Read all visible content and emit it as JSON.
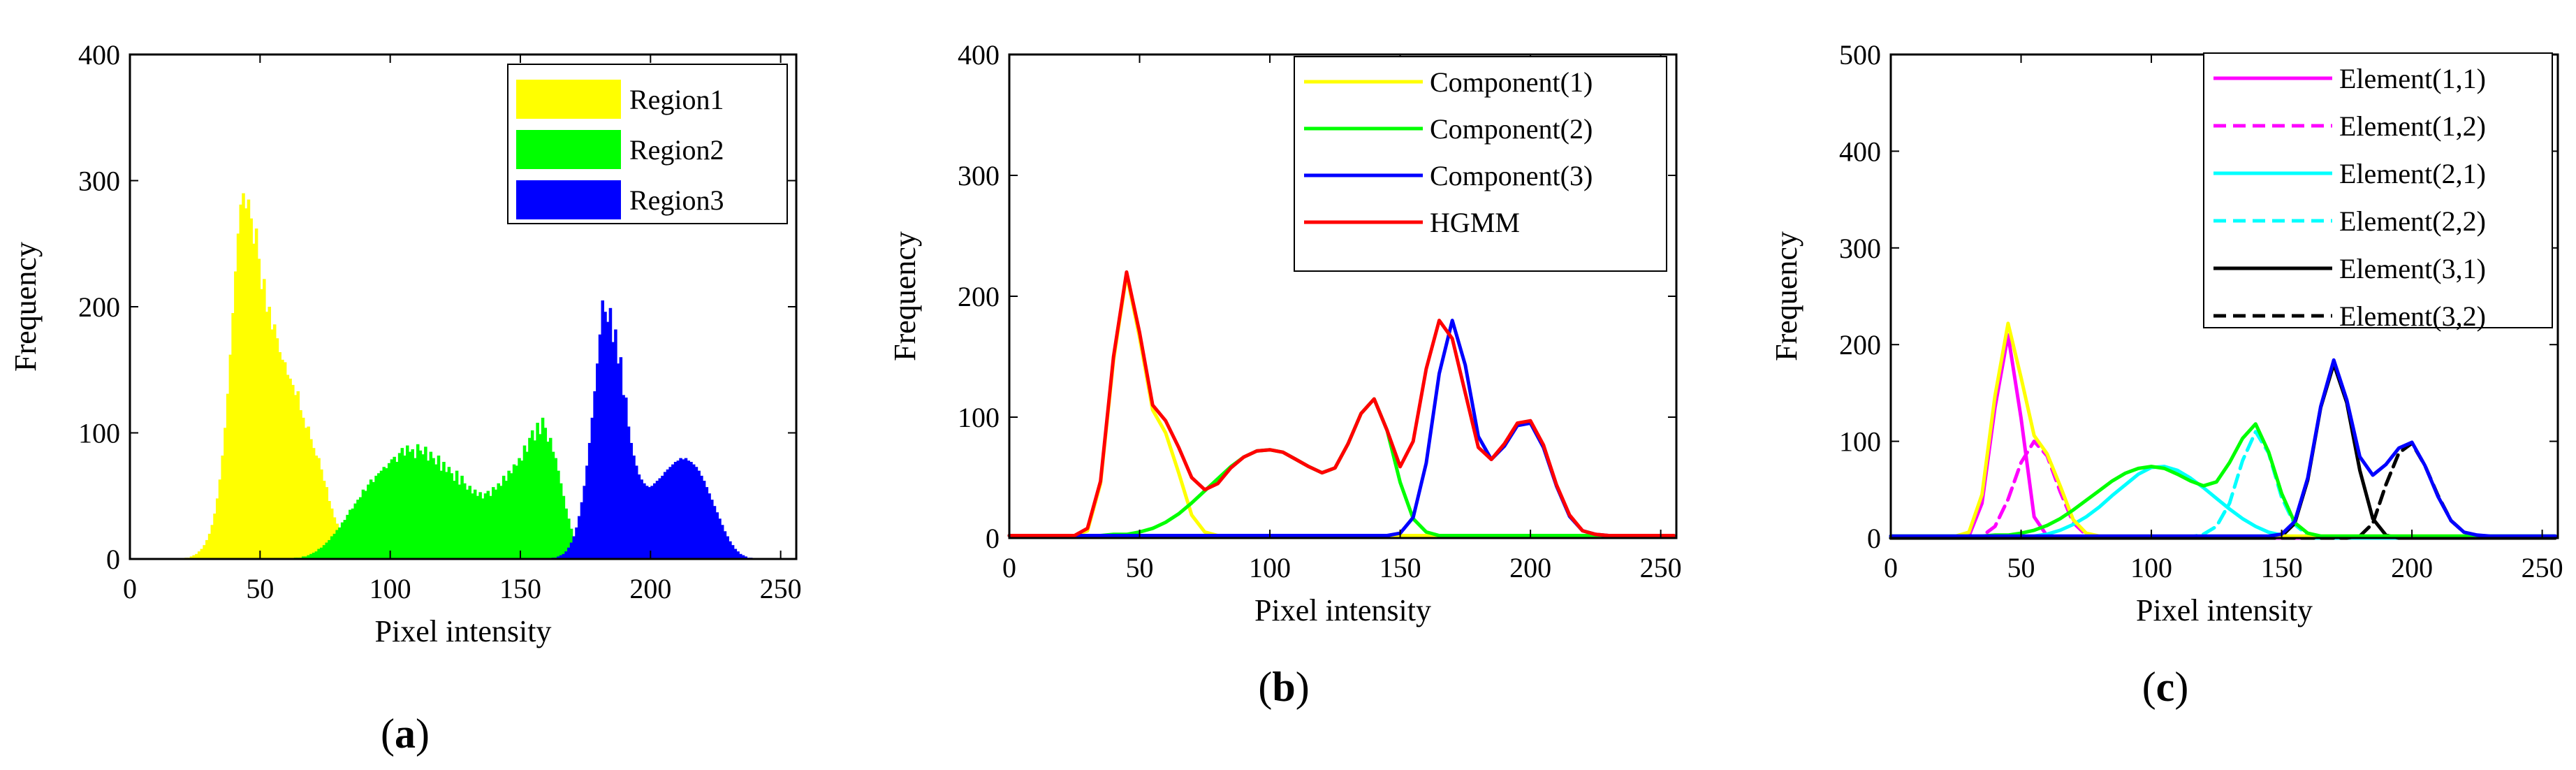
{
  "figure_panels": [
    {
      "label": "a",
      "caption": "(a)"
    },
    {
      "label": "b",
      "caption": "(b)"
    },
    {
      "label": "c",
      "caption": "(c)"
    }
  ],
  "chart_data": [
    {
      "id": "a",
      "type": "bar",
      "subtype": "histogram",
      "caption": "(a)",
      "xlabel": "Pixel intensity",
      "ylabel": "Frequency",
      "xlim": [
        0,
        256
      ],
      "ylim": [
        0,
        400
      ],
      "xticks": [
        0,
        50,
        100,
        150,
        200,
        250
      ],
      "yticks": [
        0,
        100,
        200,
        300,
        400
      ],
      "legend_position": "top-right",
      "bin_width": 1,
      "series": [
        {
          "name": "Region1",
          "color": "#ffff00",
          "range": [
            20,
            95
          ],
          "values": [
            0,
            1,
            1,
            2,
            3,
            4,
            6,
            8,
            11,
            15,
            20,
            27,
            36,
            48,
            63,
            82,
            104,
            131,
            162,
            195,
            228,
            258,
            281,
            290,
            278,
            285,
            270,
            250,
            262,
            238,
            214,
            222,
            196,
            200,
            182,
            186,
            175,
            164,
            158,
            156,
            146,
            143,
            138,
            130,
            133,
            118,
            112,
            104,
            105,
            95,
            88,
            82,
            80,
            71,
            62,
            57,
            46,
            40,
            33,
            28,
            22,
            16,
            12,
            8,
            6,
            4,
            3,
            2,
            1,
            1,
            1,
            0,
            0,
            0,
            0,
            0
          ]
        },
        {
          "name": "Region2",
          "color": "#00ff00",
          "range": [
            60,
            180
          ],
          "values": [
            0,
            0,
            0,
            1,
            1,
            1,
            2,
            2,
            3,
            4,
            5,
            6,
            8,
            9,
            11,
            13,
            15,
            18,
            20,
            23,
            25,
            29,
            31,
            35,
            39,
            40,
            44,
            47,
            49,
            55,
            54,
            59,
            63,
            61,
            66,
            68,
            70,
            73,
            72,
            76,
            79,
            81,
            77,
            84,
            88,
            82,
            90,
            85,
            87,
            80,
            91,
            86,
            83,
            89,
            78,
            85,
            80,
            75,
            82,
            70,
            77,
            69,
            73,
            68,
            62,
            70,
            59,
            66,
            60,
            55,
            58,
            52,
            55,
            50,
            53,
            48,
            52,
            54,
            50,
            57,
            55,
            60,
            58,
            66,
            62,
            70,
            68,
            75,
            74,
            80,
            78,
            90,
            85,
            96,
            102,
            94,
            108,
            99,
            112,
            104,
            93,
            96,
            85,
            80,
            70,
            60,
            50,
            40,
            32,
            24,
            18,
            12,
            8,
            5,
            3,
            2,
            1,
            1,
            0,
            0,
            0
          ]
        },
        {
          "name": "Region3",
          "color": "#0000ff",
          "range": [
            160,
            250
          ],
          "values": [
            0,
            0,
            1,
            1,
            2,
            3,
            4,
            6,
            9,
            13,
            18,
            25,
            34,
            45,
            58,
            74,
            92,
            112,
            133,
            155,
            178,
            205,
            196,
            188,
            199,
            172,
            182,
            155,
            160,
            130,
            128,
            105,
            92,
            82,
            74,
            67,
            63,
            60,
            58,
            57,
            58,
            60,
            62,
            64,
            66,
            69,
            71,
            73,
            75,
            77,
            78,
            80,
            79,
            80,
            78,
            77,
            75,
            73,
            70,
            66,
            62,
            57,
            52,
            47,
            42,
            37,
            32,
            27,
            22,
            18,
            14,
            11,
            8,
            6,
            4,
            3,
            2,
            1,
            1,
            0,
            0,
            0,
            0,
            0,
            0,
            0,
            0,
            0,
            0,
            0,
            0
          ]
        }
      ]
    },
    {
      "id": "b",
      "type": "line",
      "caption": "(b)",
      "xlabel": "Pixel intensity",
      "ylabel": "Frequency",
      "xlim": [
        0,
        256
      ],
      "ylim": [
        0,
        400
      ],
      "xticks": [
        0,
        50,
        100,
        150,
        200,
        250
      ],
      "yticks": [
        0,
        100,
        200,
        300,
        400
      ],
      "legend_position": "top-right",
      "x_step": 5,
      "series": [
        {
          "name": "Component(1)",
          "color": "#ffff00",
          "style": "solid",
          "values": [
            2,
            2,
            2,
            2,
            2,
            2,
            6,
            45,
            147,
            218,
            166,
            106,
            87,
            54,
            19,
            5,
            2,
            2,
            2,
            2,
            2,
            2,
            2,
            2,
            2,
            2,
            2,
            2,
            2,
            2,
            2,
            2,
            2,
            2,
            2,
            2,
            2,
            2,
            2,
            2,
            2,
            2,
            2,
            2,
            2,
            2,
            2,
            2,
            2,
            2,
            2,
            2
          ]
        },
        {
          "name": "Component(2)",
          "color": "#00ff00",
          "style": "solid",
          "values": [
            2,
            2,
            2,
            2,
            2,
            2,
            2,
            2,
            3,
            3,
            5,
            8,
            13,
            20,
            29,
            39,
            49,
            59,
            67,
            72,
            73,
            71,
            65,
            59,
            54,
            58,
            78,
            103,
            115,
            89,
            46,
            16,
            5,
            2,
            2,
            2,
            2,
            2,
            2,
            2,
            2,
            2,
            2,
            2,
            2,
            2,
            2,
            2,
            2,
            2,
            2,
            2
          ]
        },
        {
          "name": "Component(3)",
          "color": "#0000ff",
          "style": "solid",
          "values": [
            2,
            2,
            2,
            2,
            2,
            2,
            2,
            2,
            2,
            2,
            2,
            2,
            2,
            2,
            2,
            2,
            2,
            2,
            2,
            2,
            2,
            2,
            2,
            2,
            2,
            2,
            2,
            2,
            2,
            2,
            4,
            17,
            62,
            136,
            180,
            143,
            84,
            65,
            76,
            93,
            95,
            75,
            43,
            18,
            6,
            3,
            2,
            2,
            2,
            2,
            2,
            2
          ]
        },
        {
          "name": "HGMM",
          "color": "#ff0000",
          "style": "solid",
          "values": [
            2,
            2,
            2,
            2,
            2,
            2,
            8,
            47,
            150,
            220,
            170,
            110,
            97,
            75,
            50,
            40,
            45,
            58,
            67,
            72,
            73,
            71,
            65,
            59,
            54,
            58,
            78,
            103,
            115,
            89,
            59,
            80,
            140,
            180,
            165,
            120,
            75,
            65,
            78,
            95,
            97,
            77,
            44,
            19,
            6,
            3,
            2,
            2,
            2,
            2,
            2,
            2
          ]
        }
      ]
    },
    {
      "id": "c",
      "type": "line",
      "caption": "(c)",
      "xlabel": "Pixel intensity",
      "ylabel": "Frequency",
      "xlim": [
        0,
        256
      ],
      "ylim": [
        0,
        500
      ],
      "xticks": [
        0,
        50,
        100,
        150,
        200,
        250
      ],
      "yticks": [
        0,
        100,
        200,
        300,
        400,
        500
      ],
      "legend_position": "top-right",
      "x_step": 5,
      "series": [
        {
          "name": "Element(1,1)",
          "color": "#ff00ff",
          "style": "solid",
          "values": [
            0,
            0,
            0,
            0,
            0,
            0,
            2,
            36,
            135,
            210,
            124,
            22,
            2,
            0,
            0,
            0,
            0,
            0,
            0,
            0,
            0,
            0,
            0,
            0,
            0,
            0,
            0,
            0,
            0,
            0,
            0,
            0,
            0,
            0,
            0,
            0,
            0,
            0,
            0,
            0,
            0,
            0,
            0,
            0,
            0,
            0,
            0,
            0,
            0,
            0,
            0,
            0
          ]
        },
        {
          "name": "Element(1,2)",
          "color": "#ff00ff",
          "style": "dashed",
          "values": [
            0,
            0,
            0,
            0,
            0,
            0,
            0,
            2,
            12,
            40,
            78,
            100,
            85,
            48,
            16,
            3,
            0,
            0,
            0,
            0,
            0,
            0,
            0,
            0,
            0,
            0,
            0,
            0,
            0,
            0,
            0,
            0,
            0,
            0,
            0,
            0,
            0,
            0,
            0,
            0,
            0,
            0,
            0,
            0,
            0,
            0,
            0,
            0,
            0,
            0,
            0,
            0
          ]
        },
        {
          "name": "Element(2,1)",
          "color": "#00ffff",
          "style": "solid",
          "values": [
            0,
            0,
            0,
            0,
            0,
            0,
            0,
            0,
            0,
            0,
            1,
            2,
            4,
            8,
            14,
            22,
            32,
            44,
            55,
            66,
            73,
            74,
            70,
            62,
            52,
            41,
            30,
            20,
            12,
            6,
            3,
            1,
            0,
            0,
            0,
            0,
            0,
            0,
            0,
            0,
            0,
            0,
            0,
            0,
            0,
            0,
            0,
            0,
            0,
            0,
            0,
            0
          ]
        },
        {
          "name": "Element(2,2)",
          "color": "#00ffff",
          "style": "dashed",
          "values": [
            0,
            0,
            0,
            0,
            0,
            0,
            0,
            0,
            0,
            0,
            0,
            0,
            0,
            0,
            0,
            0,
            0,
            0,
            0,
            0,
            0,
            0,
            0,
            1,
            4,
            12,
            36,
            80,
            110,
            88,
            42,
            14,
            3,
            0,
            0,
            0,
            0,
            0,
            0,
            0,
            0,
            0,
            0,
            0,
            0,
            0,
            0,
            0,
            0,
            0,
            0,
            0
          ]
        },
        {
          "name": "Element(3,1)",
          "color": "#000000",
          "style": "solid",
          "values": [
            0,
            0,
            0,
            0,
            0,
            0,
            0,
            0,
            0,
            0,
            0,
            0,
            0,
            0,
            0,
            0,
            0,
            0,
            0,
            0,
            0,
            0,
            0,
            0,
            0,
            0,
            0,
            0,
            0,
            0,
            2,
            15,
            60,
            135,
            180,
            140,
            70,
            20,
            3,
            0,
            0,
            0,
            0,
            0,
            0,
            0,
            0,
            0,
            0,
            0,
            0,
            0
          ]
        },
        {
          "name": "Element(3,2)",
          "color": "#000000",
          "style": "dashed",
          "values": [
            0,
            0,
            0,
            0,
            0,
            0,
            0,
            0,
            0,
            0,
            0,
            0,
            0,
            0,
            0,
            0,
            0,
            0,
            0,
            0,
            0,
            0,
            0,
            0,
            0,
            0,
            0,
            0,
            0,
            0,
            0,
            0,
            0,
            0,
            0,
            0,
            2,
            15,
            55,
            88,
            98,
            75,
            44,
            18,
            6,
            2,
            0,
            0,
            0,
            0,
            0,
            0
          ]
        },
        {
          "name": "_mixture_overlay",
          "color": "#ffff00",
          "style": "solid",
          "in_legend": false,
          "values": [
            2,
            2,
            2,
            2,
            2,
            2,
            6,
            45,
            147,
            222,
            166,
            106,
            87,
            54,
            19,
            5,
            2,
            2,
            2,
            2,
            2,
            2,
            2,
            2,
            2,
            2,
            2,
            2,
            2,
            2,
            2,
            2,
            2,
            2,
            2,
            2,
            2,
            2,
            2,
            2,
            2,
            2,
            2,
            2,
            2,
            2,
            2,
            2,
            2,
            2,
            2,
            2
          ]
        },
        {
          "name": "_mixture_overlay2",
          "color": "#00ff00",
          "style": "solid",
          "in_legend": false,
          "values": [
            2,
            2,
            2,
            2,
            2,
            2,
            2,
            2,
            3,
            3,
            5,
            8,
            13,
            20,
            29,
            39,
            49,
            59,
            67,
            72,
            74,
            72,
            66,
            59,
            54,
            58,
            78,
            103,
            118,
            89,
            46,
            16,
            5,
            2,
            2,
            2,
            2,
            2,
            2,
            2,
            2,
            2,
            2,
            2,
            2,
            2,
            2,
            2,
            2,
            2,
            2,
            2
          ]
        },
        {
          "name": "_mixture_overlay3",
          "color": "#0000ff",
          "style": "solid",
          "in_legend": false,
          "values": [
            2,
            2,
            2,
            2,
            2,
            2,
            2,
            2,
            2,
            2,
            2,
            2,
            2,
            2,
            2,
            2,
            2,
            2,
            2,
            2,
            2,
            2,
            2,
            2,
            2,
            2,
            2,
            2,
            2,
            2,
            4,
            17,
            62,
            136,
            184,
            143,
            84,
            65,
            76,
            93,
            99,
            75,
            43,
            18,
            6,
            3,
            2,
            2,
            2,
            2,
            2,
            2
          ]
        }
      ]
    }
  ]
}
